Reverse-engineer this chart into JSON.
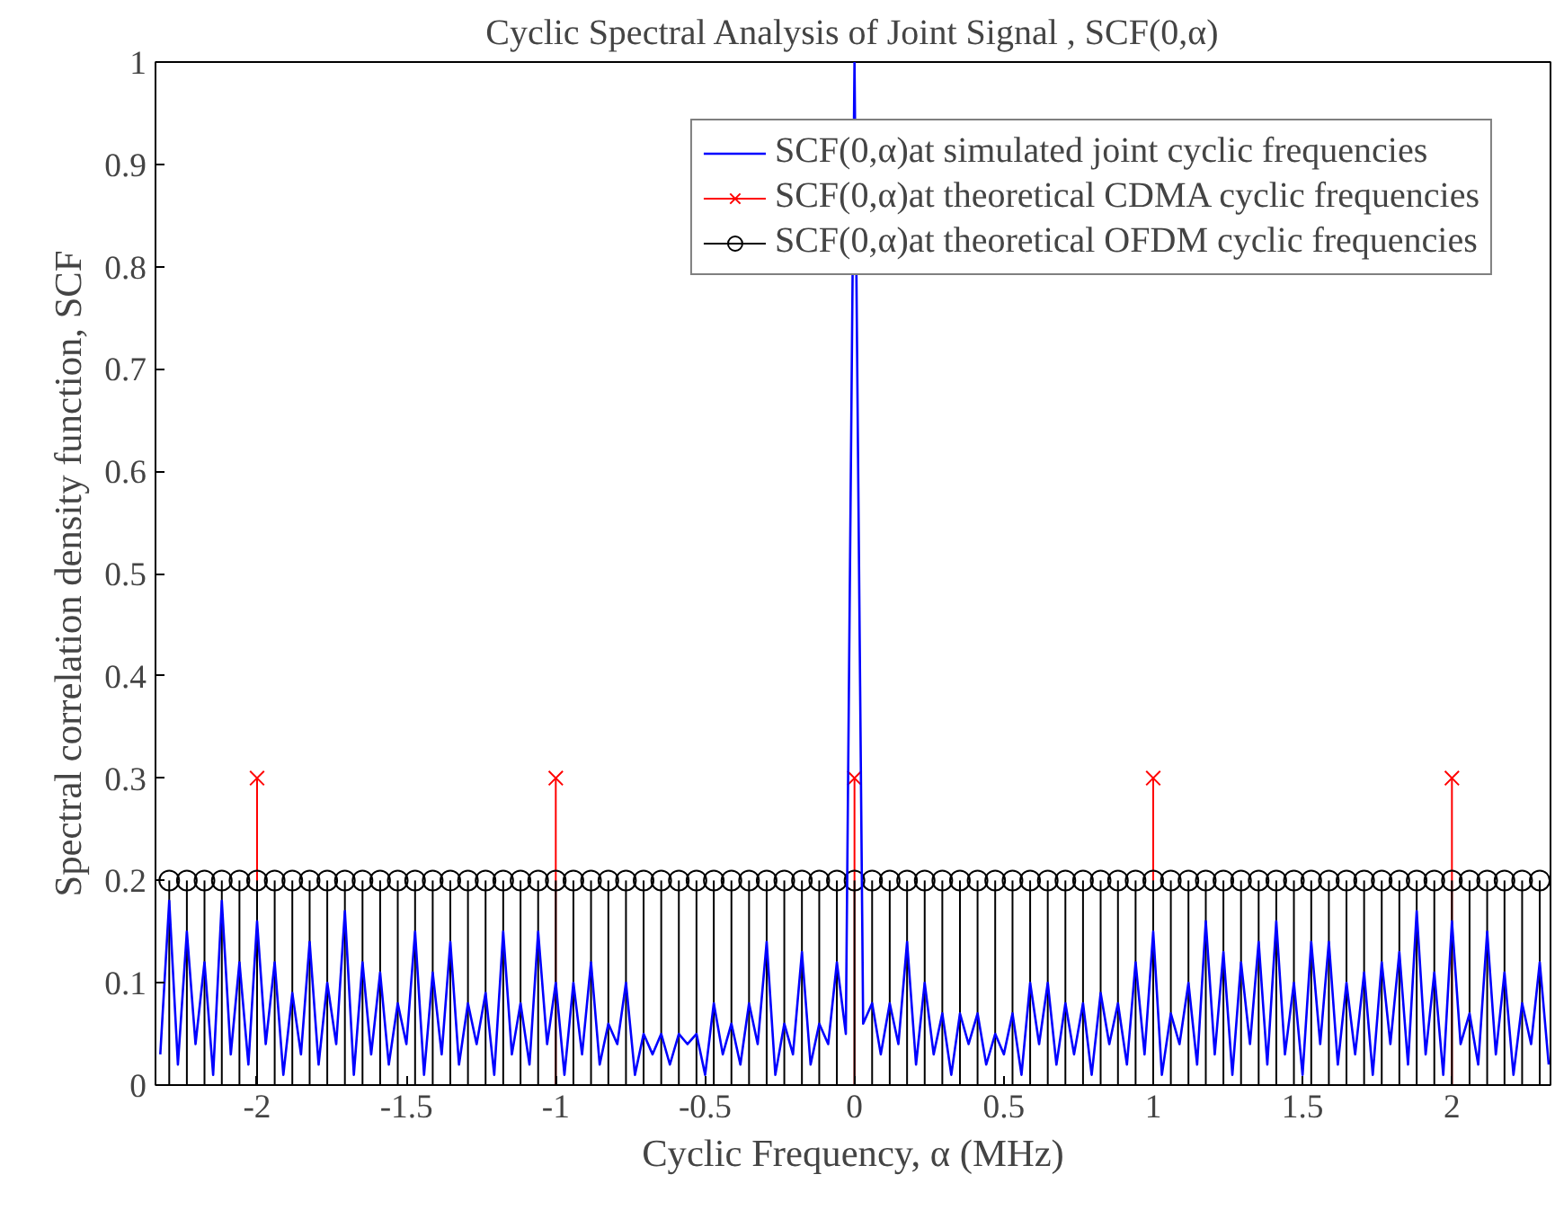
{
  "chart_data": {
    "type": "line",
    "title": "Cyclic Spectral Analysis of Joint Signal , SCF(0,α)",
    "xlabel": "Cyclic Frequency, α (MHz)",
    "ylabel": "Spectral correlation density function, SCF",
    "xlim": [
      -2.34,
      2.33
    ],
    "ylim": [
      0,
      1
    ],
    "xticks": [
      -2,
      -1.5,
      -1,
      -0.5,
      0,
      0.5,
      1,
      1.5,
      2
    ],
    "yticks": [
      0,
      0.1,
      0.2,
      0.3,
      0.4,
      0.5,
      0.6,
      0.7,
      0.8,
      0.9,
      1
    ],
    "grid": false,
    "legend": "top right",
    "series": [
      {
        "name": "SCF(0,α)at simulated joint cyclic frequencies",
        "color": "#0000ff",
        "marker": "none",
        "x": [
          -2.324,
          -2.294,
          -2.265,
          -2.235,
          -2.206,
          -2.176,
          -2.147,
          -2.118,
          -2.088,
          -2.059,
          -2.029,
          -2.0,
          -1.971,
          -1.941,
          -1.912,
          -1.882,
          -1.853,
          -1.824,
          -1.794,
          -1.765,
          -1.735,
          -1.706,
          -1.676,
          -1.647,
          -1.618,
          -1.588,
          -1.559,
          -1.529,
          -1.5,
          -1.471,
          -1.441,
          -1.412,
          -1.382,
          -1.353,
          -1.324,
          -1.294,
          -1.265,
          -1.235,
          -1.206,
          -1.176,
          -1.147,
          -1.118,
          -1.088,
          -1.059,
          -1.029,
          -1.0,
          -0.971,
          -0.941,
          -0.912,
          -0.882,
          -0.853,
          -0.824,
          -0.794,
          -0.765,
          -0.735,
          -0.706,
          -0.676,
          -0.647,
          -0.618,
          -0.588,
          -0.559,
          -0.529,
          -0.5,
          -0.471,
          -0.441,
          -0.412,
          -0.382,
          -0.353,
          -0.324,
          -0.294,
          -0.265,
          -0.235,
          -0.206,
          -0.176,
          -0.147,
          -0.118,
          -0.088,
          -0.059,
          -0.029,
          0,
          0.029,
          0.059,
          0.088,
          0.118,
          0.147,
          0.176,
          0.206,
          0.235,
          0.265,
          0.294,
          0.324,
          0.353,
          0.382,
          0.412,
          0.441,
          0.471,
          0.5,
          0.529,
          0.559,
          0.588,
          0.618,
          0.647,
          0.676,
          0.706,
          0.735,
          0.765,
          0.794,
          0.824,
          0.853,
          0.882,
          0.912,
          0.941,
          0.971,
          1.0,
          1.029,
          1.059,
          1.088,
          1.118,
          1.147,
          1.176,
          1.206,
          1.235,
          1.265,
          1.294,
          1.324,
          1.353,
          1.382,
          1.412,
          1.441,
          1.471,
          1.5,
          1.529,
          1.559,
          1.588,
          1.618,
          1.647,
          1.676,
          1.706,
          1.735,
          1.765,
          1.794,
          1.824,
          1.853,
          1.882,
          1.912,
          1.941,
          1.971,
          2.0,
          2.029,
          2.059,
          2.088,
          2.118,
          2.147,
          2.176,
          2.206,
          2.235,
          2.265,
          2.294,
          2.324
        ],
        "values": [
          0.03,
          0.18,
          0.02,
          0.15,
          0.04,
          0.12,
          0.01,
          0.18,
          0.03,
          0.12,
          0.02,
          0.16,
          0.04,
          0.12,
          0.01,
          0.09,
          0.03,
          0.14,
          0.02,
          0.1,
          0.04,
          0.17,
          0.01,
          0.12,
          0.03,
          0.11,
          0.02,
          0.08,
          0.04,
          0.15,
          0.01,
          0.11,
          0.03,
          0.14,
          0.02,
          0.08,
          0.04,
          0.09,
          0.01,
          0.15,
          0.03,
          0.08,
          0.02,
          0.15,
          0.04,
          0.1,
          0.01,
          0.1,
          0.03,
          0.12,
          0.02,
          0.06,
          0.04,
          0.1,
          0.01,
          0.05,
          0.03,
          0.05,
          0.02,
          0.05,
          0.04,
          0.05,
          0.01,
          0.08,
          0.03,
          0.06,
          0.02,
          0.08,
          0.04,
          0.14,
          0.01,
          0.06,
          0.03,
          0.13,
          0.02,
          0.06,
          0.04,
          0.12,
          0.05,
          1.0,
          0.06,
          0.08,
          0.03,
          0.08,
          0.04,
          0.14,
          0.02,
          0.1,
          0.03,
          0.07,
          0.01,
          0.07,
          0.04,
          0.07,
          0.02,
          0.05,
          0.03,
          0.07,
          0.01,
          0.1,
          0.04,
          0.1,
          0.02,
          0.08,
          0.03,
          0.08,
          0.01,
          0.09,
          0.04,
          0.08,
          0.02,
          0.12,
          0.03,
          0.15,
          0.01,
          0.07,
          0.04,
          0.1,
          0.02,
          0.16,
          0.03,
          0.13,
          0.01,
          0.12,
          0.04,
          0.14,
          0.02,
          0.16,
          0.03,
          0.1,
          0.01,
          0.14,
          0.04,
          0.14,
          0.02,
          0.1,
          0.03,
          0.11,
          0.01,
          0.12,
          0.04,
          0.13,
          0.02,
          0.17,
          0.03,
          0.11,
          0.01,
          0.16,
          0.04,
          0.07,
          0.02,
          0.15,
          0.03,
          0.11,
          0.01,
          0.08,
          0.04,
          0.12,
          0.02
        ]
      },
      {
        "name": "SCF(0,α)at theoretical CDMA cyclic frequencies",
        "type": "lollipop",
        "color": "#ff0000",
        "marker": "cross",
        "x": [
          -2,
          -1,
          0,
          1,
          2
        ],
        "values": [
          0.3,
          0.3,
          0.3,
          0.3,
          0.3
        ]
      },
      {
        "name": "SCF(0,α)at theoretical OFDM cyclic frequencies",
        "type": "lollipop",
        "color": "#000000",
        "marker": "circle",
        "x": [
          -2.294,
          -2.235,
          -2.176,
          -2.118,
          -2.059,
          -2.0,
          -1.941,
          -1.882,
          -1.824,
          -1.765,
          -1.706,
          -1.647,
          -1.588,
          -1.529,
          -1.471,
          -1.412,
          -1.353,
          -1.294,
          -1.235,
          -1.176,
          -1.118,
          -1.059,
          -1.0,
          -0.941,
          -0.882,
          -0.824,
          -0.765,
          -0.706,
          -0.647,
          -0.588,
          -0.529,
          -0.471,
          -0.412,
          -0.353,
          -0.294,
          -0.235,
          -0.176,
          -0.118,
          -0.059,
          0,
          0.059,
          0.118,
          0.176,
          0.235,
          0.294,
          0.353,
          0.412,
          0.471,
          0.529,
          0.588,
          0.647,
          0.706,
          0.765,
          0.824,
          0.882,
          0.941,
          1.0,
          1.059,
          1.118,
          1.176,
          1.235,
          1.294,
          1.353,
          1.412,
          1.471,
          1.529,
          1.588,
          1.647,
          1.706,
          1.765,
          1.824,
          1.882,
          1.941,
          2.0,
          2.059,
          2.118,
          2.176,
          2.235,
          2.294
        ],
        "values": [
          0.2,
          0.2,
          0.2,
          0.2,
          0.2,
          0.2,
          0.2,
          0.2,
          0.2,
          0.2,
          0.2,
          0.2,
          0.2,
          0.2,
          0.2,
          0.2,
          0.2,
          0.2,
          0.2,
          0.2,
          0.2,
          0.2,
          0.2,
          0.2,
          0.2,
          0.2,
          0.2,
          0.2,
          0.2,
          0.2,
          0.2,
          0.2,
          0.2,
          0.2,
          0.2,
          0.2,
          0.2,
          0.2,
          0.2,
          0.2,
          0.2,
          0.2,
          0.2,
          0.2,
          0.2,
          0.2,
          0.2,
          0.2,
          0.2,
          0.2,
          0.2,
          0.2,
          0.2,
          0.2,
          0.2,
          0.2,
          0.2,
          0.2,
          0.2,
          0.2,
          0.2,
          0.2,
          0.2,
          0.2,
          0.2,
          0.2,
          0.2,
          0.2,
          0.2,
          0.2,
          0.2,
          0.2,
          0.2,
          0.2,
          0.2,
          0.2,
          0.2,
          0.2,
          0.2
        ]
      }
    ]
  }
}
